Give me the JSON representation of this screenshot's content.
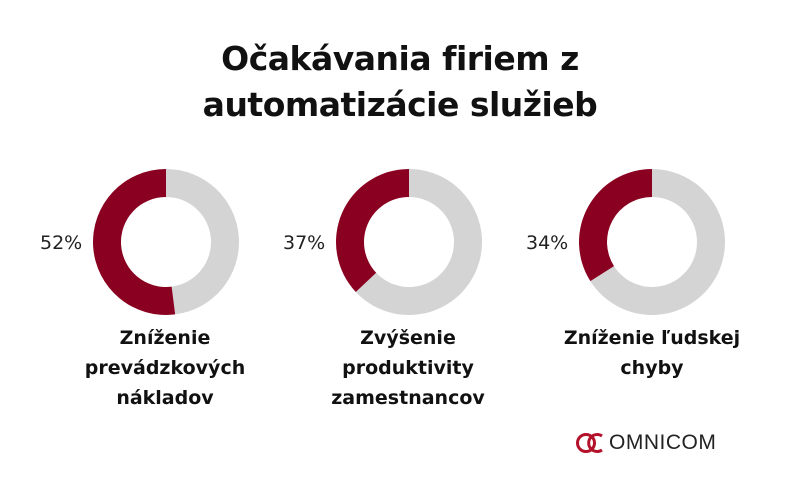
{
  "title_lines": [
    "Očakávania firiem z",
    "automatizácie služieb"
  ],
  "colors": {
    "primary": "#8a0020",
    "secondary": "#d4d4d4"
  },
  "chart_data": [
    {
      "type": "pie",
      "value": 52,
      "value_label": "52%",
      "label_lines": [
        "Zníženie",
        "prevádzkových",
        "nákladov"
      ]
    },
    {
      "type": "pie",
      "value": 37,
      "value_label": "37%",
      "label_lines": [
        "Zvýšenie",
        "produktivity",
        "zamestnancov"
      ]
    },
    {
      "type": "pie",
      "value": 34,
      "value_label": "34%",
      "label_lines": [
        "Zníženie ľudskej",
        "chyby"
      ]
    }
  ],
  "logo": {
    "text": "OMNICOM",
    "icon": "omnicom-logo-icon"
  }
}
